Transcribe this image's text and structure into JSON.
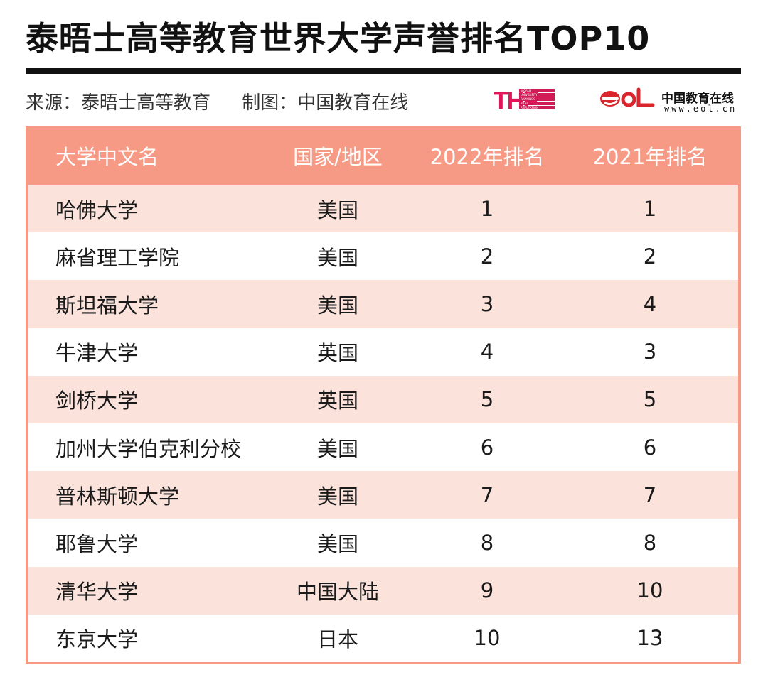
{
  "title": "泰晤士高等教育世界大学声誉排名TOP10",
  "source": "来源：泰晤士高等教育",
  "credit": "制图：中国教育在线",
  "logos": {
    "the_mark": "THE",
    "the_lines": [
      "WORLD",
      "UNIVERSITY",
      "RANKINGS",
      "2022",
      "REPUTATION"
    ],
    "eol_name": "中国教育在线",
    "eol_url": "www.eol.cn"
  },
  "colors": {
    "header_bg": "#f79a85",
    "row_alt_bg": "#fbe2da",
    "title": "#111111"
  },
  "table": {
    "headers": [
      "大学中文名",
      "国家/地区",
      "2022年排名",
      "2021年排名"
    ],
    "rows": [
      [
        "哈佛大学",
        "美国",
        "1",
        "1"
      ],
      [
        "麻省理工学院",
        "美国",
        "2",
        "2"
      ],
      [
        "斯坦福大学",
        "美国",
        "3",
        "4"
      ],
      [
        "牛津大学",
        "英国",
        "4",
        "3"
      ],
      [
        "剑桥大学",
        "英国",
        "5",
        "5"
      ],
      [
        "加州大学伯克利分校",
        "美国",
        "6",
        "6"
      ],
      [
        "普林斯顿大学",
        "美国",
        "7",
        "7"
      ],
      [
        "耶鲁大学",
        "美国",
        "8",
        "8"
      ],
      [
        "清华大学",
        "中国大陆",
        "9",
        "10"
      ],
      [
        "东京大学",
        "日本",
        "10",
        "13"
      ]
    ]
  }
}
